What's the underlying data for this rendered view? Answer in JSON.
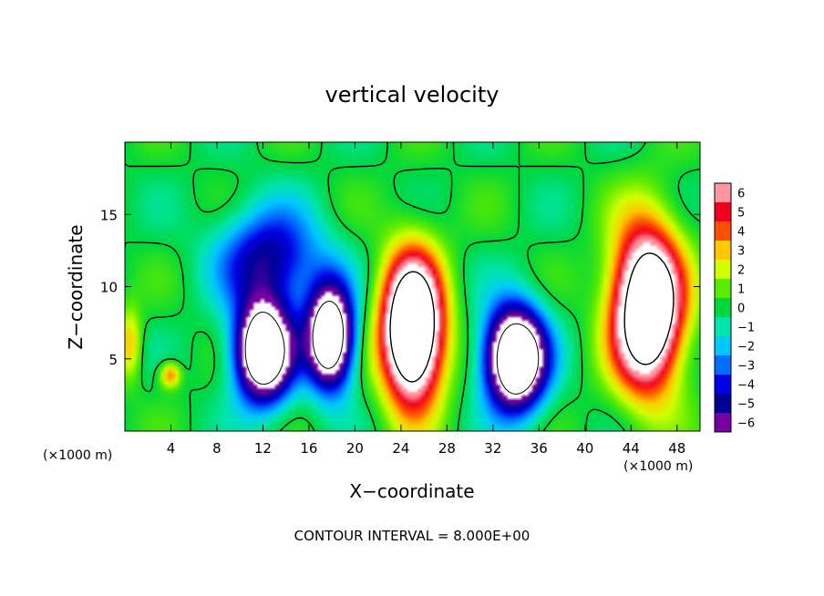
{
  "chart_data": {
    "type": "heatmap",
    "title": "vertical velocity",
    "xlabel": "X−coordinate",
    "ylabel": "Z−coordinate",
    "x_unit_left": "(×1000 m)",
    "x_unit_right": "(×1000 m)",
    "xlim": [
      0,
      50
    ],
    "ylim": [
      0,
      20
    ],
    "xticks": [
      4,
      8,
      12,
      16,
      20,
      24,
      28,
      32,
      36,
      40,
      44,
      48
    ],
    "xtick_labels": [
      "4",
      "8",
      "12",
      "16",
      "20",
      "24",
      "28",
      "32",
      "36",
      "40",
      "44",
      "48"
    ],
    "yticks": [
      5,
      10,
      15
    ],
    "ytick_labels": [
      "5",
      "10",
      "15"
    ],
    "colorbar": {
      "levels": [
        6,
        5,
        4,
        3,
        2,
        1,
        0,
        -1,
        -2,
        -3,
        -4,
        -5,
        -6
      ],
      "labels": [
        "6",
        "5",
        "4",
        "3",
        "2",
        "1",
        "0",
        "−1",
        "−2",
        "−3",
        "−4",
        "−5",
        "−6"
      ]
    },
    "footer": "CONTOUR INTERVAL = 8.000E+00",
    "features": [
      {
        "kind": "updraft",
        "x": 25.0,
        "z": 7.0,
        "sx": 2.6,
        "sz": 5.0,
        "amp": 14
      },
      {
        "kind": "updraft",
        "x": 45.5,
        "z": 8.5,
        "sx": 3.0,
        "sz": 5.5,
        "amp": 13
      },
      {
        "kind": "downdraft",
        "x": 34.0,
        "z": 5.0,
        "sx": 2.6,
        "sz": 3.5,
        "amp": -13
      },
      {
        "kind": "downdraft",
        "x": 17.8,
        "z": 6.5,
        "sx": 2.0,
        "sz": 3.5,
        "amp": -12
      },
      {
        "kind": "downdraft",
        "x": 12.0,
        "z": 5.5,
        "sx": 2.5,
        "sz": 3.5,
        "amp": -12
      },
      {
        "kind": "downdraft",
        "x": 12.5,
        "z": 12.0,
        "sx": 4.5,
        "sz": 3.5,
        "amp": -5
      },
      {
        "kind": "updraft",
        "x": 3.8,
        "z": 3.8,
        "sx": 0.9,
        "sz": 0.9,
        "amp": 4
      },
      {
        "kind": "updraft",
        "x": 0.3,
        "z": 6.0,
        "sx": 1.0,
        "sz": 2.5,
        "amp": 3
      }
    ]
  }
}
